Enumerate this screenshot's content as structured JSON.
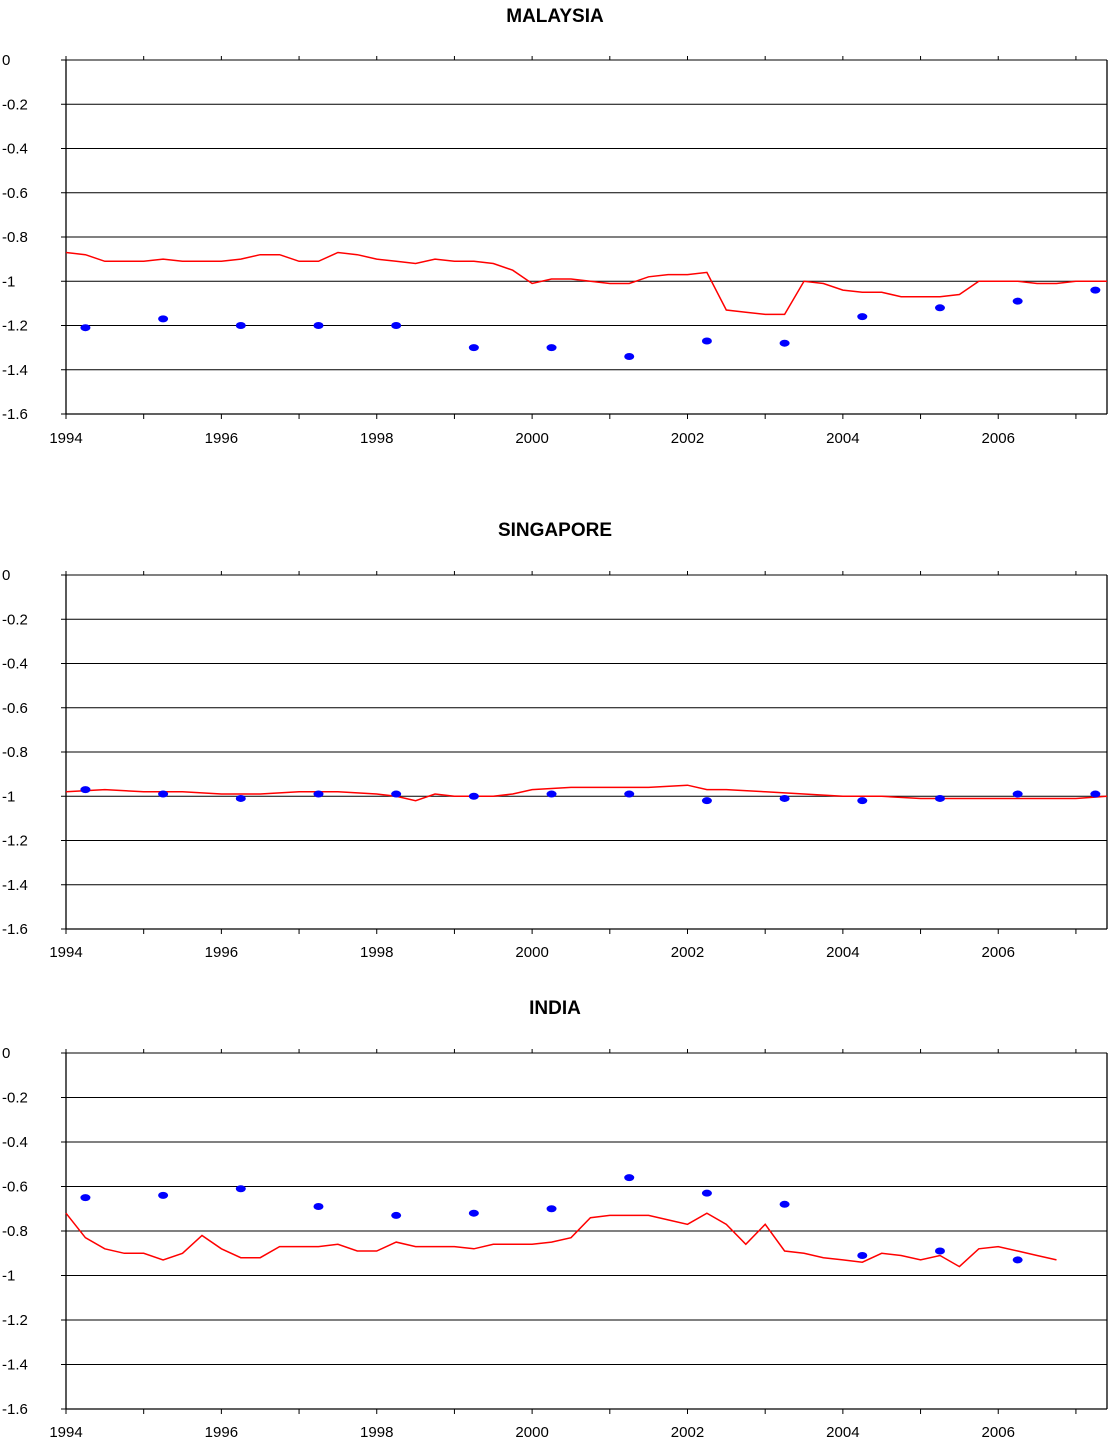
{
  "chart_data": [
    {
      "type": "line",
      "title": "MALAYSIA",
      "xlabel": "",
      "ylabel": "",
      "xlim": [
        1994,
        2007.4
      ],
      "ylim": [
        -1.6,
        0
      ],
      "y_ticks": [
        0,
        -0.2,
        -0.4,
        -0.6,
        -0.8,
        -1,
        -1.2,
        -1.4,
        -1.6
      ],
      "y_tick_labels": [
        "0",
        "-0.2",
        "-0.4",
        "-0.6",
        "-0.8",
        "-1",
        "-1.2",
        "-1.4",
        "-1.6"
      ],
      "x_tick_labels": [
        "1994",
        "1996",
        "1998",
        "2000",
        "2002",
        "2004",
        "2006"
      ],
      "x_tick_values": [
        1994,
        1996,
        1998,
        2000,
        2002,
        2004,
        2006
      ],
      "grid": "horizontal",
      "colors": {
        "line": "#ff0000",
        "points": "#0000ff"
      },
      "series": [
        {
          "style": "line",
          "x": [
            1994.0,
            1994.25,
            1994.5,
            1994.75,
            1995.0,
            1995.25,
            1995.5,
            1995.75,
            1996.0,
            1996.25,
            1996.5,
            1996.75,
            1997.0,
            1997.25,
            1997.5,
            1997.75,
            1998.0,
            1998.25,
            1998.5,
            1998.75,
            1999.0,
            1999.25,
            1999.5,
            1999.75,
            2000.0,
            2000.25,
            2000.5,
            2000.75,
            2001.0,
            2001.25,
            2001.5,
            2001.75,
            2002.0,
            2002.25,
            2002.5,
            2002.75,
            2003.0,
            2003.25,
            2003.5,
            2003.75,
            2004.0,
            2004.25,
            2004.5,
            2004.75,
            2005.0,
            2005.25,
            2005.5,
            2005.75,
            2006.0,
            2006.25,
            2006.5,
            2006.75,
            2007.0,
            2007.25,
            2007.4
          ],
          "y": [
            -0.87,
            -0.88,
            -0.91,
            -0.91,
            -0.91,
            -0.9,
            -0.91,
            -0.91,
            -0.91,
            -0.9,
            -0.88,
            -0.88,
            -0.91,
            -0.91,
            -0.87,
            -0.88,
            -0.9,
            -0.91,
            -0.92,
            -0.9,
            -0.91,
            -0.91,
            -0.92,
            -0.95,
            -1.01,
            -0.99,
            -0.99,
            -1.0,
            -1.01,
            -1.01,
            -0.98,
            -0.97,
            -0.97,
            -0.96,
            -1.13,
            -1.14,
            -1.15,
            -1.15,
            -1.0,
            -1.01,
            -1.04,
            -1.05,
            -1.05,
            -1.07,
            -1.07,
            -1.07,
            -1.06,
            -1.0,
            -1.0,
            -1.0,
            -1.01,
            -1.01,
            -1.0,
            -1.0,
            -1.0
          ]
        },
        {
          "style": "points",
          "x": [
            1994.25,
            1995.25,
            1996.25,
            1997.25,
            1998.25,
            1999.25,
            2000.25,
            2001.25,
            2002.25,
            2003.25,
            2004.25,
            2005.25,
            2006.25,
            2007.25
          ],
          "y": [
            -1.21,
            -1.17,
            -1.2,
            -1.2,
            -1.2,
            -1.3,
            -1.3,
            -1.34,
            -1.27,
            -1.28,
            -1.16,
            -1.12,
            -1.09,
            -1.04
          ]
        }
      ]
    },
    {
      "type": "line",
      "title": "SINGAPORE",
      "xlabel": "",
      "ylabel": "",
      "xlim": [
        1994,
        2007.4
      ],
      "ylim": [
        -1.6,
        0
      ],
      "y_ticks": [
        0,
        -0.2,
        -0.4,
        -0.6,
        -0.8,
        -1,
        -1.2,
        -1.4,
        -1.6
      ],
      "y_tick_labels": [
        "0",
        "-0.2",
        "-0.4",
        "-0.6",
        "-0.8",
        "-1",
        "-1.2",
        "-1.4",
        "-1.6"
      ],
      "x_tick_labels": [
        "1994",
        "1996",
        "1998",
        "2000",
        "2002",
        "2004",
        "2006"
      ],
      "x_tick_values": [
        1994,
        1996,
        1998,
        2000,
        2002,
        2004,
        2006
      ],
      "grid": "horizontal",
      "colors": {
        "line": "#ff0000",
        "points": "#0000ff"
      },
      "series": [
        {
          "style": "line",
          "x": [
            1994.0,
            1994.5,
            1995.0,
            1995.5,
            1996.0,
            1996.5,
            1997.0,
            1997.5,
            1998.0,
            1998.25,
            1998.5,
            1998.75,
            1999.0,
            1999.25,
            1999.5,
            1999.75,
            2000.0,
            2000.5,
            2001.0,
            2001.5,
            2002.0,
            2002.25,
            2002.5,
            2003.0,
            2003.5,
            2004.0,
            2004.5,
            2005.0,
            2005.5,
            2006.0,
            2006.5,
            2007.0,
            2007.4
          ],
          "y": [
            -0.98,
            -0.97,
            -0.98,
            -0.98,
            -0.99,
            -0.99,
            -0.98,
            -0.98,
            -0.99,
            -1.0,
            -1.02,
            -0.99,
            -1.0,
            -1.0,
            -1.0,
            -0.99,
            -0.97,
            -0.96,
            -0.96,
            -0.96,
            -0.95,
            -0.97,
            -0.97,
            -0.98,
            -0.99,
            -1.0,
            -1.0,
            -1.01,
            -1.01,
            -1.01,
            -1.01,
            -1.01,
            -1.0
          ]
        },
        {
          "style": "points",
          "x": [
            1994.25,
            1995.25,
            1996.25,
            1997.25,
            1998.25,
            1999.25,
            2000.25,
            2001.25,
            2002.25,
            2003.25,
            2004.25,
            2005.25,
            2006.25,
            2007.25
          ],
          "y": [
            -0.97,
            -0.99,
            -1.01,
            -0.99,
            -0.99,
            -1.0,
            -0.99,
            -0.99,
            -1.02,
            -1.01,
            -1.02,
            -1.01,
            -0.99,
            -0.99
          ]
        }
      ]
    },
    {
      "type": "line",
      "title": "INDIA",
      "xlabel": "",
      "ylabel": "",
      "xlim": [
        1994,
        2007.4
      ],
      "ylim": [
        -1.6,
        0
      ],
      "y_ticks": [
        0,
        -0.2,
        -0.4,
        -0.6,
        -0.8,
        -1,
        -1.2,
        -1.4,
        -1.6
      ],
      "y_tick_labels": [
        "0",
        "-0.2",
        "-0.4",
        "-0.6",
        "-0.8",
        "-1",
        "-1.2",
        "-1.4",
        "-1.6"
      ],
      "x_tick_labels": [
        "1994",
        "1996",
        "1998",
        "2000",
        "2002",
        "2004",
        "2006"
      ],
      "x_tick_values": [
        1994,
        1996,
        1998,
        2000,
        2002,
        2004,
        2006
      ],
      "grid": "horizontal",
      "colors": {
        "line": "#ff0000",
        "points": "#0000ff"
      },
      "series": [
        {
          "style": "line",
          "x": [
            1994.0,
            1994.25,
            1994.5,
            1994.75,
            1995.0,
            1995.25,
            1995.5,
            1995.75,
            1996.0,
            1996.25,
            1996.5,
            1996.75,
            1997.0,
            1997.25,
            1997.5,
            1997.75,
            1998.0,
            1998.25,
            1998.5,
            1998.75,
            1999.0,
            1999.25,
            1999.5,
            1999.75,
            2000.0,
            2000.25,
            2000.5,
            2000.75,
            2001.0,
            2001.25,
            2001.5,
            2001.75,
            2002.0,
            2002.25,
            2002.5,
            2002.75,
            2003.0,
            2003.25,
            2003.5,
            2003.75,
            2004.0,
            2004.25,
            2004.5,
            2004.75,
            2005.0,
            2005.25,
            2005.5,
            2005.75,
            2006.0,
            2006.25,
            2006.5,
            2006.75
          ],
          "y": [
            -0.72,
            -0.83,
            -0.88,
            -0.9,
            -0.9,
            -0.93,
            -0.9,
            -0.82,
            -0.88,
            -0.92,
            -0.92,
            -0.87,
            -0.87,
            -0.87,
            -0.86,
            -0.89,
            -0.89,
            -0.85,
            -0.87,
            -0.87,
            -0.87,
            -0.88,
            -0.86,
            -0.86,
            -0.86,
            -0.85,
            -0.83,
            -0.74,
            -0.73,
            -0.73,
            -0.73,
            -0.75,
            -0.77,
            -0.72,
            -0.77,
            -0.86,
            -0.77,
            -0.89,
            -0.9,
            -0.92,
            -0.93,
            -0.94,
            -0.9,
            -0.91,
            -0.93,
            -0.91,
            -0.96,
            -0.88,
            -0.87,
            -0.89,
            -0.91,
            -0.93
          ]
        },
        {
          "style": "points",
          "x": [
            1994.25,
            1995.25,
            1996.25,
            1997.25,
            1998.25,
            1999.25,
            2000.25,
            2001.25,
            2002.25,
            2003.25,
            2004.25,
            2005.25,
            2006.25
          ],
          "y": [
            -0.65,
            -0.64,
            -0.61,
            -0.69,
            -0.73,
            -0.72,
            -0.7,
            -0.56,
            -0.63,
            -0.68,
            -0.91,
            -0.89,
            -0.93
          ]
        }
      ]
    }
  ]
}
